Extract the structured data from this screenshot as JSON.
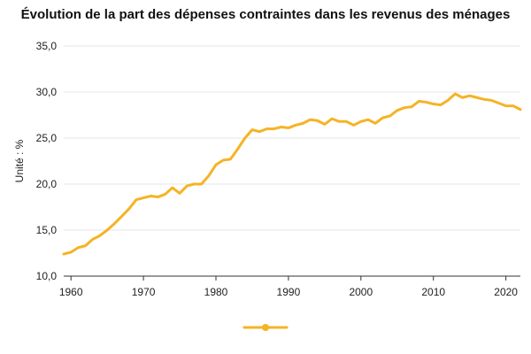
{
  "chart_data": {
    "type": "line",
    "title": "Évolution de la part des dépenses contraintes dans les revenus des ménages",
    "ylabel": "Unité : %",
    "xlabel": "",
    "xlim": [
      1959,
      2022
    ],
    "ylim": [
      10,
      35
    ],
    "x_ticks": [
      1960,
      1970,
      1980,
      1990,
      2000,
      2010,
      2020
    ],
    "y_ticks": [
      10,
      15,
      20,
      25,
      30,
      35
    ],
    "y_tick_labels": [
      "10,0",
      "15,0",
      "20,0",
      "25,0",
      "30,0",
      "35,0"
    ],
    "grid": "horizontal",
    "legend": "bottom-center",
    "color": "#F5B324",
    "series": [
      {
        "x": [
          1959,
          1960,
          1961,
          1962,
          1963,
          1964,
          1965,
          1966,
          1967,
          1968,
          1969,
          1970,
          1971,
          1972,
          1973,
          1974,
          1975,
          1976,
          1977,
          1978,
          1979,
          1980,
          1981,
          1982,
          1983,
          1984,
          1985,
          1986,
          1987,
          1988,
          1989,
          1990,
          1991,
          1992,
          1993,
          1994,
          1995,
          1996,
          1997,
          1998,
          1999,
          2000,
          2001,
          2002,
          2003,
          2004,
          2005,
          2006,
          2007,
          2008,
          2009,
          2010,
          2011,
          2012,
          2013,
          2014,
          2015,
          2016,
          2017,
          2018,
          2019,
          2020,
          2021,
          2022
        ],
        "values": [
          12.4,
          12.6,
          13.1,
          13.3,
          14.0,
          14.4,
          15.0,
          15.7,
          16.5,
          17.3,
          18.3,
          18.5,
          18.7,
          18.6,
          18.9,
          19.6,
          19.0,
          19.8,
          20.0,
          20.0,
          20.9,
          22.1,
          22.6,
          22.7,
          23.8,
          25.0,
          25.9,
          25.7,
          26.0,
          26.0,
          26.2,
          26.1,
          26.4,
          26.6,
          27.0,
          26.9,
          26.5,
          27.1,
          26.8,
          26.8,
          26.4,
          26.8,
          27.0,
          26.6,
          27.2,
          27.4,
          28.0,
          28.3,
          28.4,
          29.0,
          28.9,
          28.7,
          28.6,
          29.1,
          29.8,
          29.4,
          29.6,
          29.4,
          29.2,
          29.1,
          28.8,
          28.5,
          28.5,
          28.1
        ]
      }
    ]
  }
}
